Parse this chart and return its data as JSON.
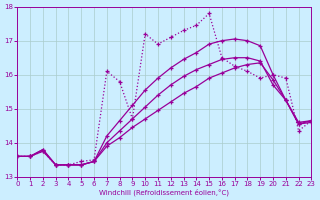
{
  "xlabel": "Windchill (Refroidissement éolien,°C)",
  "bg_color": "#cceeff",
  "line_color": "#990099",
  "grid_color": "#aacccc",
  "xlim": [
    0,
    23
  ],
  "ylim": [
    13,
    18
  ],
  "xticks": [
    0,
    1,
    2,
    3,
    4,
    5,
    6,
    7,
    8,
    9,
    10,
    11,
    12,
    13,
    14,
    15,
    16,
    17,
    18,
    19,
    20,
    21,
    22,
    23
  ],
  "yticks": [
    13,
    14,
    15,
    16,
    17,
    18
  ],
  "series": [
    {
      "x": [
        0,
        1,
        2,
        3,
        4,
        5,
        6,
        7,
        8,
        9,
        10,
        11,
        12,
        13,
        14,
        15,
        16,
        17,
        18,
        19,
        20,
        21,
        22,
        23
      ],
      "y": [
        13.6,
        13.6,
        13.75,
        13.35,
        13.35,
        13.35,
        13.45,
        13.9,
        14.15,
        14.45,
        14.7,
        14.95,
        15.2,
        15.45,
        15.65,
        15.9,
        16.05,
        16.2,
        16.3,
        16.35,
        15.85,
        15.25,
        14.55,
        14.6
      ],
      "ls": "-",
      "lw": 0.9
    },
    {
      "x": [
        0,
        1,
        2,
        3,
        4,
        5,
        6,
        7,
        8,
        9,
        10,
        11,
        12,
        13,
        14,
        15,
        16,
        17,
        18,
        19,
        20,
        21,
        22,
        23
      ],
      "y": [
        13.6,
        13.6,
        13.8,
        13.35,
        13.35,
        13.35,
        13.45,
        14.2,
        14.65,
        15.1,
        15.55,
        15.9,
        16.2,
        16.45,
        16.65,
        16.9,
        17.0,
        17.05,
        17.0,
        16.85,
        16.0,
        15.25,
        14.6,
        14.65
      ],
      "ls": "-",
      "lw": 0.9
    },
    {
      "x": [
        0,
        1,
        2,
        3,
        4,
        5,
        6,
        7,
        8,
        9,
        10,
        11,
        12,
        13,
        14,
        15,
        16,
        17,
        18,
        19,
        20,
        21,
        22,
        23
      ],
      "y": [
        13.6,
        13.6,
        13.8,
        13.35,
        13.35,
        13.35,
        13.45,
        14.0,
        14.35,
        14.7,
        15.05,
        15.4,
        15.7,
        15.95,
        16.15,
        16.3,
        16.45,
        16.5,
        16.5,
        16.4,
        15.7,
        15.25,
        14.55,
        14.65
      ],
      "ls": "-",
      "lw": 0.9
    },
    {
      "x": [
        0,
        1,
        2,
        3,
        4,
        5,
        6,
        7,
        8,
        9,
        10,
        11,
        12,
        13,
        14,
        15,
        16,
        17,
        18,
        19,
        20,
        21,
        22,
        23
      ],
      "y": [
        13.6,
        13.6,
        13.75,
        13.35,
        13.35,
        13.45,
        13.5,
        16.1,
        15.8,
        14.7,
        17.2,
        16.9,
        17.1,
        17.3,
        17.45,
        17.8,
        16.5,
        16.25,
        16.1,
        15.9,
        16.0,
        15.9,
        14.35,
        14.65
      ],
      "ls": ":",
      "lw": 0.9
    }
  ]
}
